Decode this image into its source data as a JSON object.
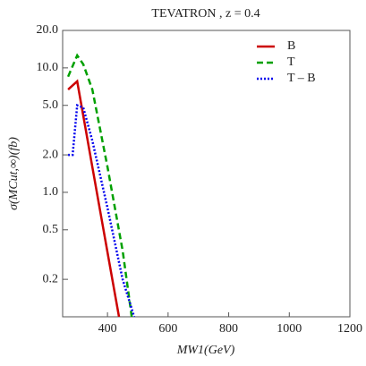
{
  "chart_data": {
    "type": "line",
    "title": "TEVATRON , z = 0.4",
    "x_label": "MW1(GeV)",
    "y_label": "σ(MCut,∞)(fb)",
    "log_y": true,
    "legend": "top-right",
    "xlim": [
      252,
      1200
    ],
    "xticks": [
      400,
      600,
      800,
      1000,
      1200
    ],
    "ylim": [
      0.1,
      20
    ],
    "yticks": [
      0.2,
      0.5,
      {
        "value": 1,
        "label": "1.0"
      },
      {
        "value": 2,
        "label": "2.0"
      },
      {
        "value": 5,
        "label": "5.0"
      },
      {
        "value": 10,
        "label": "10.0"
      },
      {
        "value": 20,
        "label": "20.0"
      }
    ],
    "series": [
      {
        "name": "B",
        "color": "#cc0000",
        "dash": "solid",
        "x": [
          270,
          300,
          350,
          400,
          438
        ],
        "values": [
          6.7,
          7.8,
          1.6,
          0.33,
          0.1
        ]
      },
      {
        "name": "T",
        "color": "#00a000",
        "dash": "dashed",
        "x": [
          270,
          300,
          320,
          350,
          400,
          450,
          480
        ],
        "values": [
          8.5,
          12.6,
          10.7,
          6.7,
          1.6,
          0.34,
          0.1
        ]
      },
      {
        "name": "T – B",
        "color": "#0000ee",
        "dash": "dotted",
        "x": [
          270,
          285,
          300,
          320,
          350,
          400,
          450,
          488
        ],
        "values": [
          2.0,
          2.0,
          5.0,
          4.8,
          2.6,
          0.75,
          0.2,
          0.1
        ]
      }
    ]
  }
}
